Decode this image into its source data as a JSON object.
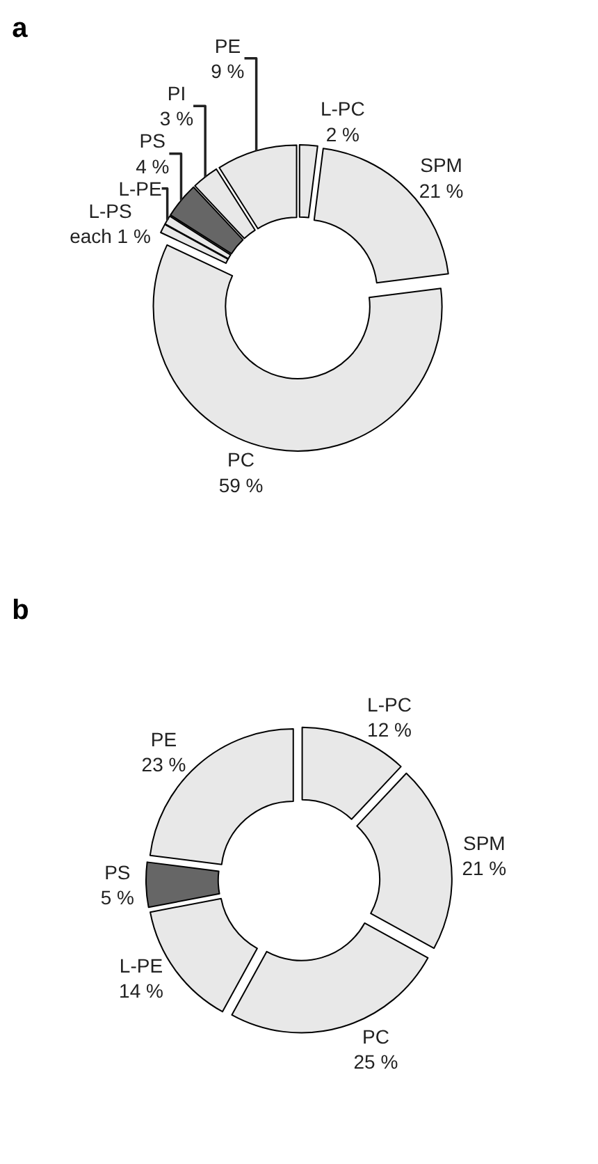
{
  "chart_data": [
    {
      "type": "donut",
      "title": "a",
      "categories": [
        "L-PC",
        "SPM",
        "PC",
        "L-PS",
        "L-PE",
        "PS",
        "PI",
        "PE"
      ],
      "values": [
        2,
        21,
        59,
        1,
        1,
        4,
        3,
        9
      ],
      "value_labels": [
        "2 %",
        "21 %",
        "59 %",
        "each 1 %",
        null,
        "4 %",
        "3 %",
        "9 %"
      ],
      "colors": [
        "#e8e8e8",
        "#e8e8e8",
        "#e8e8e8",
        "#e8e8e8",
        "#e8e8e8",
        "#666666",
        "#e8e8e8",
        "#e8e8e8"
      ],
      "legend": false
    },
    {
      "type": "donut",
      "title": "b",
      "categories": [
        "L-PC",
        "SPM",
        "PC",
        "L-PE",
        "PS",
        "PE"
      ],
      "values": [
        12,
        21,
        25,
        14,
        5,
        23
      ],
      "value_labels": [
        "12 %",
        "21 %",
        "25 %",
        "14 %",
        "5 %",
        "23 %"
      ],
      "colors": [
        "#e8e8e8",
        "#e8e8e8",
        "#e8e8e8",
        "#e8e8e8",
        "#666666",
        "#e8e8e8"
      ],
      "legend": false
    }
  ]
}
